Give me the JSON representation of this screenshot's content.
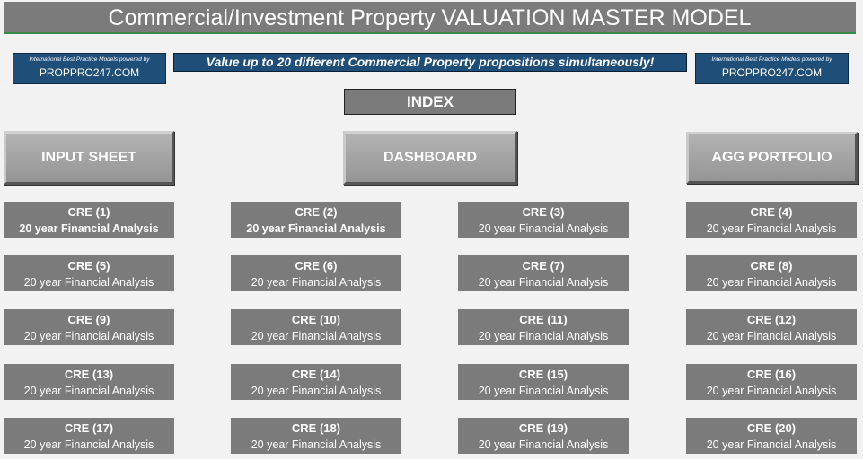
{
  "title": "Commercial/Investment Property VALUATION MASTER MODEL",
  "brand_left": {
    "tagline": "International Best Practice Models powered by",
    "url": "PROPPRO247.COM"
  },
  "brand_right": {
    "tagline": "International Best Practice Models powered by",
    "url": "PROPPRO247.COM"
  },
  "banner": "Value up to 20 different Commercial Property propositions simultaneously!",
  "index_label": "INDEX",
  "buttons": {
    "input_sheet": "INPUT SHEET",
    "dashboard": "DASHBOARD",
    "agg_portfolio": "AGG PORTFOLIO"
  },
  "cre_sublabel": "20 year Financial Analysis",
  "cre_items": [
    "CRE (1)",
    "CRE (2)",
    "CRE (3)",
    "CRE (4)",
    "CRE (5)",
    "CRE (6)",
    "CRE (7)",
    "CRE (8)",
    "CRE (9)",
    "CRE (10)",
    "CRE (11)",
    "CRE (12)",
    "CRE (13)",
    "CRE (14)",
    "CRE (15)",
    "CRE (16)",
    "CRE (17)",
    "CRE (18)",
    "CRE (19)",
    "CRE (20)"
  ],
  "colors": {
    "title_bg": "#7b7b7b",
    "brand_bg": "#1f4e79",
    "tile_bg": "#7b7b7b",
    "page_bg": "#f2f2f2"
  }
}
